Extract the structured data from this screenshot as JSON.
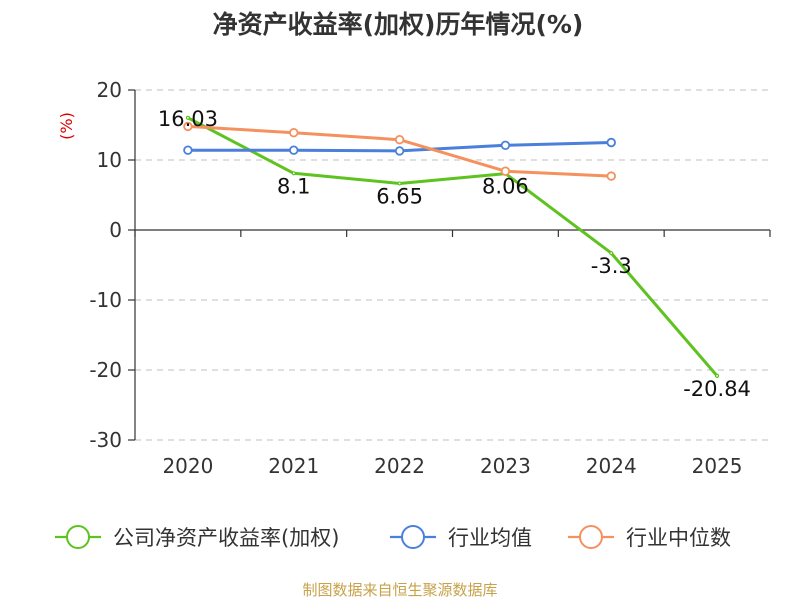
{
  "chart_data": {
    "type": "line",
    "title": "净资产收益率(加权)历年情况(%)",
    "ylabel": "(%)",
    "xlabel": "",
    "categories": [
      "2020",
      "2021",
      "2022",
      "2023",
      "2024",
      "2025"
    ],
    "ylim": [
      -30,
      20
    ],
    "yticks": [
      20,
      10,
      0,
      -10,
      -20,
      -30
    ],
    "grid": true,
    "legend_position": "bottom",
    "series": [
      {
        "name": "公司净资产收益率(加权)",
        "color": "#5ec21f",
        "values": [
          16.03,
          8.1,
          6.65,
          8.06,
          -3.3,
          -20.84
        ],
        "labels": [
          "16.03",
          "8.1",
          "6.65",
          "8.06",
          "-3.3",
          "-20.84"
        ],
        "show_labels": true,
        "markers": false
      },
      {
        "name": "行业均值",
        "color": "#4a7fdc",
        "values": [
          11.4,
          11.4,
          11.3,
          12.1,
          12.5,
          null
        ],
        "show_labels": false,
        "markers": true
      },
      {
        "name": "行业中位数",
        "color": "#f4915f",
        "values": [
          14.8,
          13.9,
          12.9,
          8.4,
          7.7,
          null
        ],
        "show_labels": false,
        "markers": true
      }
    ],
    "colors": {
      "ylabel": "#dd0000",
      "axis": "#333333",
      "grid": "#cccccc"
    }
  },
  "source": "制图数据来自恒生聚源数据库",
  "source_color": "#c8a24a"
}
